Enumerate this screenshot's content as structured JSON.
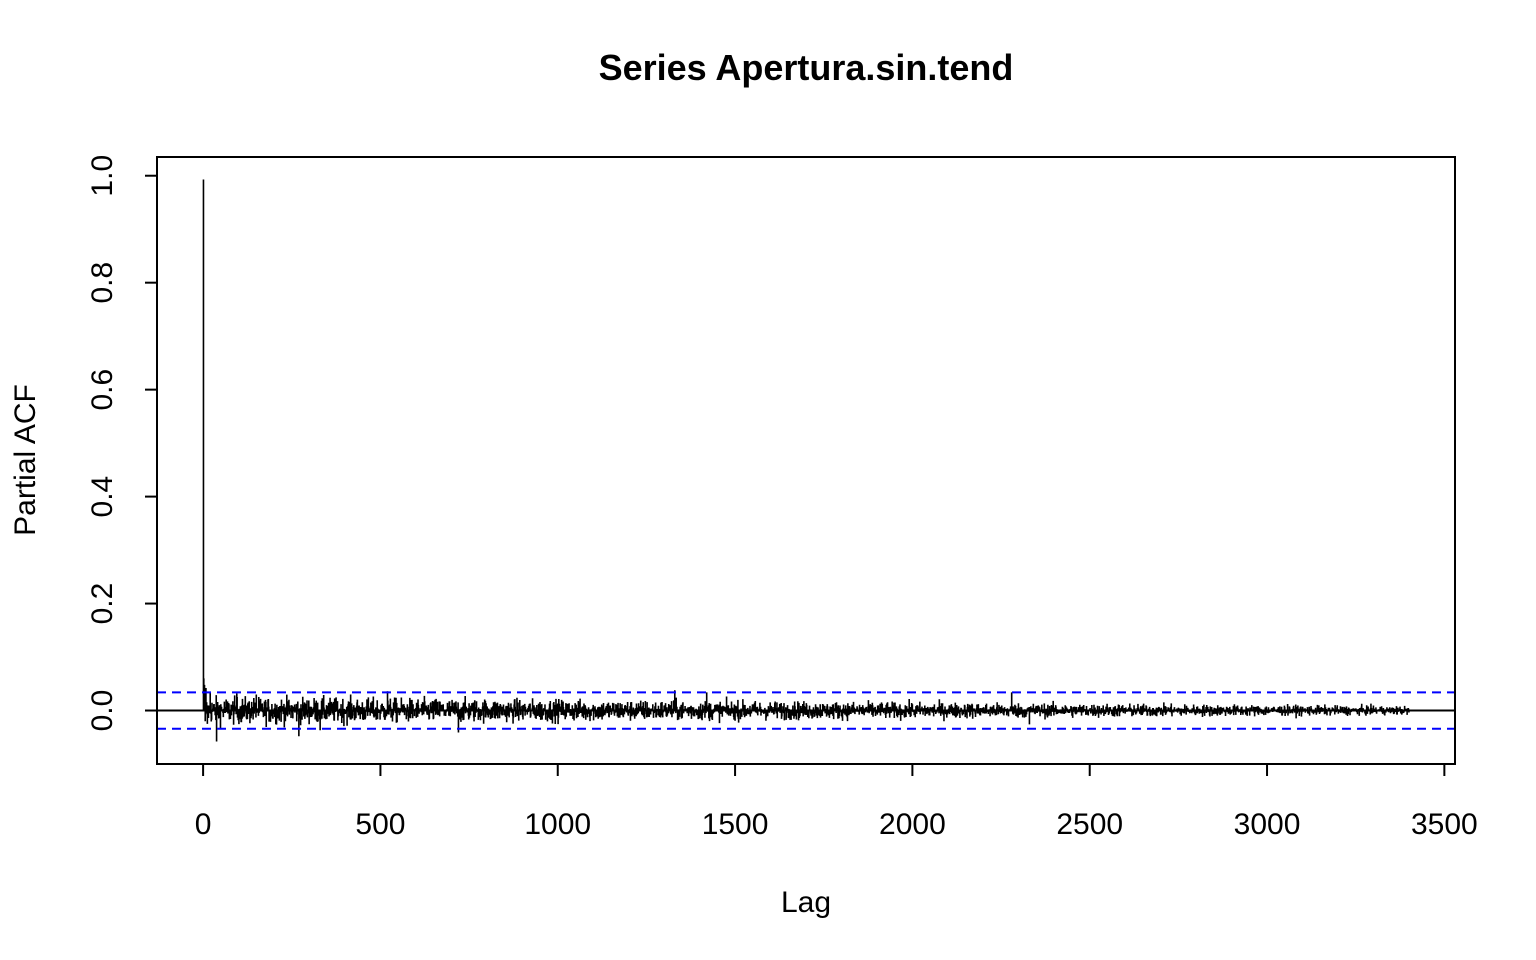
{
  "chart_data": {
    "type": "bar",
    "subtype": "pacf",
    "title": "Series  Apertura.sin.tend",
    "xlabel": "Lag",
    "ylabel": "Partial ACF",
    "xlim": [
      -130,
      3530
    ],
    "ylim": [
      -0.1,
      1.035
    ],
    "x_ticks": [
      "0",
      "500",
      "1000",
      "1500",
      "2000",
      "2500",
      "3000",
      "3500"
    ],
    "y_ticks": [
      "0.0",
      "0.2",
      "0.4",
      "0.6",
      "0.8",
      "1.0"
    ],
    "max_lag": 3400,
    "confidence_bound": 0.034,
    "confidence_color": "#0000ff",
    "bar_color": "#000000",
    "zero_line": true,
    "grid": false,
    "legend": "none",
    "notable_lags": [
      {
        "lag": 1,
        "value": 0.993
      },
      {
        "lag": 2,
        "value": 0.06
      },
      {
        "lag": 4,
        "value": 0.048
      },
      {
        "lag": 6,
        "value": -0.02
      },
      {
        "lag": 8,
        "value": 0.042
      },
      {
        "lag": 12,
        "value": -0.025
      },
      {
        "lag": 20,
        "value": 0.035
      },
      {
        "lag": 38,
        "value": -0.058
      },
      {
        "lag": 95,
        "value": 0.032
      },
      {
        "lag": 150,
        "value": 0.03
      },
      {
        "lag": 270,
        "value": -0.048
      },
      {
        "lag": 330,
        "value": -0.037
      },
      {
        "lag": 520,
        "value": 0.036
      },
      {
        "lag": 720,
        "value": -0.041
      },
      {
        "lag": 1330,
        "value": 0.038
      },
      {
        "lag": 1420,
        "value": 0.034
      },
      {
        "lag": 2280,
        "value": 0.034
      },
      {
        "lag": 2330,
        "value": -0.026
      }
    ],
    "noise_profile": {
      "note": "remaining lags fluctuate around 0 with amplitude shrinking from about 0.03 near lag 0 to about 0.009 near lag 3400",
      "amplitude_start": 0.028,
      "amplitude_end": 0.009
    }
  }
}
